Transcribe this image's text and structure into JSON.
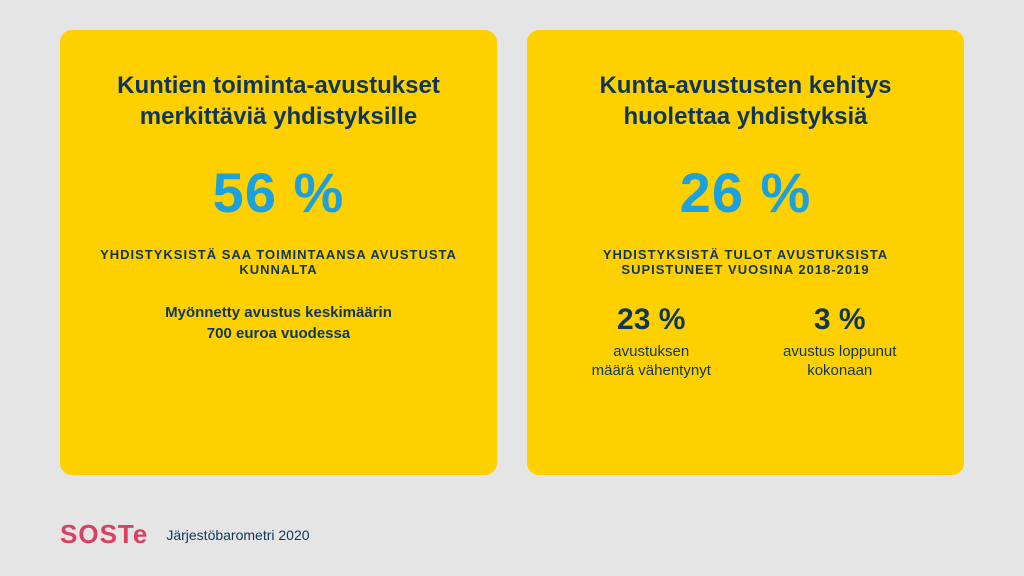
{
  "colors": {
    "page_background": "#e5e5e5",
    "card_background": "#ffd000",
    "title_color": "#0f3557",
    "accent_color": "#1da1dc",
    "logo_color": "#d94164"
  },
  "left_card": {
    "title": "Kuntien toiminta-avustukset merkittäviä yhdistyksille",
    "main_stat": "56 %",
    "subtext": "YHDISTYKSISTÄ SAA TOIMINTAANSA AVUSTUSTA KUNNALTA",
    "note_line1": "Myönnetty avustus keskimäärin",
    "note_line2": "700 euroa vuodessa"
  },
  "right_card": {
    "title": "Kunta-avustusten kehitys huolettaa yhdistyksiä",
    "main_stat": "26 %",
    "subtext": "YHDISTYKSISTÄ TULOT AVUSTUKSISTA SUPISTUNEET VUOSINA 2018-2019",
    "sub_stats": [
      {
        "value": "23 %",
        "label_line1": "avustuksen",
        "label_line2": "määrä vähentynyt"
      },
      {
        "value": "3 %",
        "label_line1": "avustus loppunut",
        "label_line2": "kokonaan"
      }
    ]
  },
  "footer": {
    "logo_text": "SOSTe",
    "caption": "Järjestöbarometri 2020"
  }
}
